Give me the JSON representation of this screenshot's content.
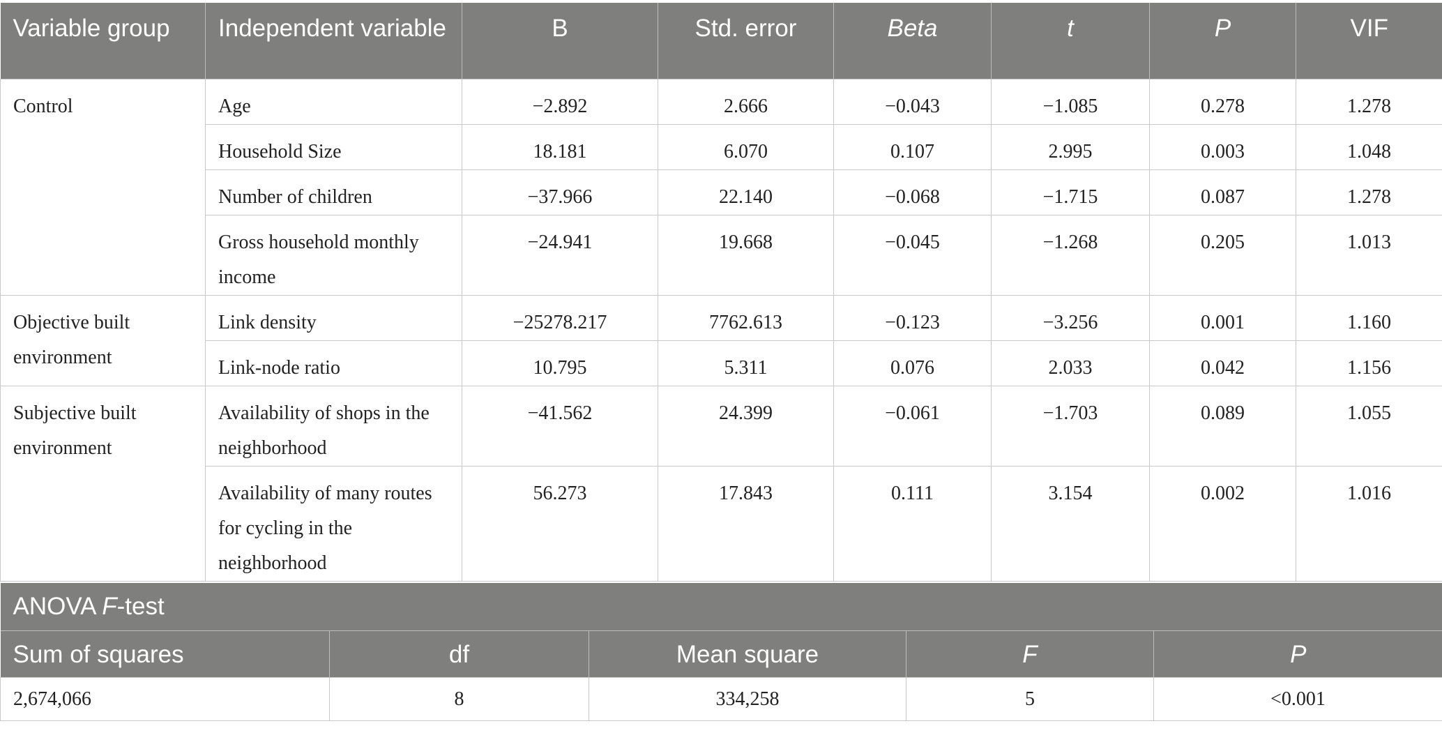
{
  "regression": {
    "headers": [
      "Variable group",
      "Independent variable",
      "B",
      "Std. error",
      "Beta",
      "t",
      "P",
      "VIF"
    ],
    "groups": [
      {
        "name": "Control",
        "rows": [
          {
            "variable": "Age",
            "B": "−2.892",
            "se": "2.666",
            "beta": "−0.043",
            "t": "−1.085",
            "p": "0.278",
            "vif": "1.278"
          },
          {
            "variable": "Household Size",
            "B": "18.181",
            "se": "6.070",
            "beta": "0.107",
            "t": "2.995",
            "p": "0.003",
            "vif": "1.048"
          },
          {
            "variable": "Number of children",
            "B": "−37.966",
            "se": "22.140",
            "beta": "−0.068",
            "t": "−1.715",
            "p": "0.087",
            "vif": "1.278"
          },
          {
            "variable": "Gross household monthly income",
            "B": "−24.941",
            "se": "19.668",
            "beta": "−0.045",
            "t": "−1.268",
            "p": "0.205",
            "vif": "1.013"
          }
        ]
      },
      {
        "name": "Objective built environment",
        "rows": [
          {
            "variable": "Link density",
            "B": "−25278.217",
            "se": "7762.613",
            "beta": "−0.123",
            "t": "−3.256",
            "p": "0.001",
            "vif": "1.160"
          },
          {
            "variable": "Link-node ratio",
            "B": "10.795",
            "se": "5.311",
            "beta": "0.076",
            "t": "2.033",
            "p": "0.042",
            "vif": "1.156"
          }
        ]
      },
      {
        "name": "Subjective built environment",
        "rows": [
          {
            "variable": "Availability of shops in the neighborhood",
            "B": "−41.562",
            "se": "24.399",
            "beta": "−0.061",
            "t": "−1.703",
            "p": "0.089",
            "vif": "1.055"
          },
          {
            "variable": "Availability of many routes for cycling in the neighborhood",
            "B": "56.273",
            "se": "17.843",
            "beta": "0.111",
            "t": "3.154",
            "p": "0.002",
            "vif": "1.016"
          }
        ]
      }
    ]
  },
  "anova": {
    "title_prefix": "ANOVA ",
    "title_italic": "F",
    "title_suffix": "-test",
    "headers": [
      "Sum of squares",
      "df",
      "Mean square",
      "F",
      "P"
    ],
    "values": [
      "2,674,066",
      "8",
      "334,258",
      "5",
      "<0.001"
    ]
  },
  "colors": {
    "header_bg": "#7f7f7e",
    "header_text": "#ffffff",
    "border": "#c8c8c8"
  }
}
